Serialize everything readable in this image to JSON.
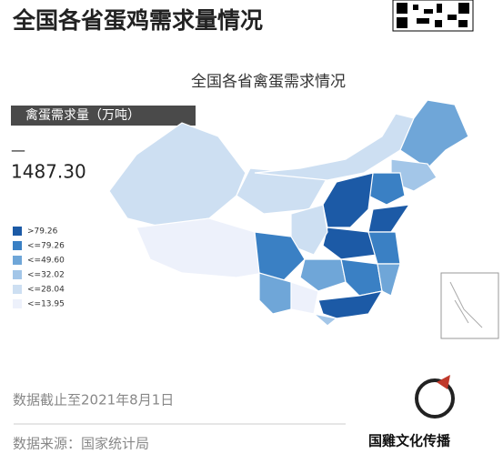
{
  "header": {
    "title": "全国各省蛋鸡需求量情况"
  },
  "map": {
    "title": "全国各省禽蛋需求情况",
    "measure_label": "禽蛋需求量（万吨）",
    "dash": "—",
    "total": "1487.30",
    "legend": [
      {
        "label": ">79.26",
        "color": "#1c5aa6"
      },
      {
        "label": "<=79.26",
        "color": "#3a80c4"
      },
      {
        "label": "<=49.60",
        "color": "#6fa6d8"
      },
      {
        "label": "<=32.02",
        "color": "#a3c6e8"
      },
      {
        "label": "<=28.04",
        "color": "#cddff2"
      },
      {
        "label": "<=13.95",
        "color": "#edf1fb"
      }
    ]
  },
  "footer": {
    "date": "数据截止至2021年8月1日",
    "source": "数据来源：国家统计局"
  },
  "logo": {
    "text": "国雞文化传播"
  }
}
